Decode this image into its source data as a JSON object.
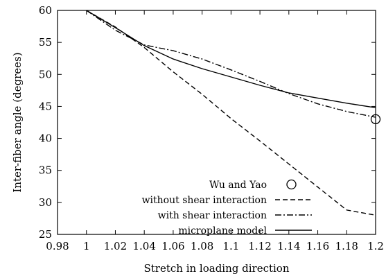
{
  "chart_data": {
    "type": "line",
    "xlabel": "Stretch in loading direction",
    "ylabel": "Inter-fiber angle (degrees)",
    "xlim": [
      0.98,
      1.2
    ],
    "ylim": [
      25,
      60
    ],
    "xticks": [
      "0.98",
      "1",
      "1.02",
      "1.04",
      "1.06",
      "1.08",
      "1.1",
      "1.12",
      "1.14",
      "1.16",
      "1.18",
      "1.2"
    ],
    "yticks": [
      "25",
      "30",
      "35",
      "40",
      "45",
      "50",
      "55",
      "60"
    ],
    "grid": false,
    "legend_position": "bottom-right",
    "series": [
      {
        "name": "Wu and Yao",
        "style": "marker-circle",
        "x": [
          1.2
        ],
        "y": [
          43
        ]
      },
      {
        "name": "without shear interaction",
        "style": "dashed",
        "x": [
          1.0,
          1.02,
          1.04,
          1.06,
          1.08,
          1.1,
          1.12,
          1.14,
          1.16,
          1.18,
          1.2
        ],
        "y": [
          60,
          57.4,
          54.2,
          50.4,
          46.9,
          43.1,
          39.6,
          36.0,
          32.4,
          28.8,
          28.0
        ]
      },
      {
        "name": "with shear interaction",
        "style": "dash-dot",
        "x": [
          1.0,
          1.02,
          1.04,
          1.06,
          1.08,
          1.1,
          1.12,
          1.14,
          1.16,
          1.18,
          1.2
        ],
        "y": [
          60,
          56.9,
          54.6,
          53.7,
          52.4,
          50.7,
          48.9,
          47.0,
          45.4,
          44.2,
          43.3
        ]
      },
      {
        "name": "microplane model",
        "style": "solid",
        "x": [
          1.0,
          1.02,
          1.04,
          1.06,
          1.08,
          1.1,
          1.12,
          1.14,
          1.16,
          1.18,
          1.2
        ],
        "y": [
          60,
          57.3,
          54.5,
          52.4,
          50.9,
          49.6,
          48.3,
          47.1,
          46.3,
          45.5,
          44.8
        ]
      }
    ]
  }
}
